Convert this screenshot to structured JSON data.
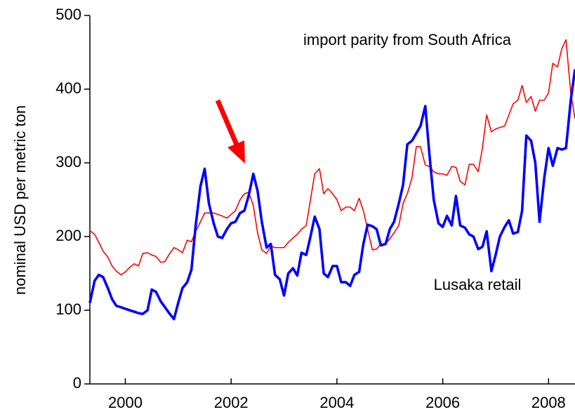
{
  "chart_data": {
    "type": "line",
    "y_label": "nominal USD per metric ton",
    "xlim": [
      1999.33,
      2008.5
    ],
    "xticks": [
      2000,
      2002,
      2004,
      2006,
      2008
    ],
    "ylim": [
      0,
      500
    ],
    "yticks": [
      0,
      100,
      200,
      300,
      400,
      500
    ],
    "x": [
      1999.33,
      1999.42,
      1999.5,
      1999.58,
      1999.67,
      1999.75,
      1999.83,
      1999.92,
      2000.0,
      2000.08,
      2000.17,
      2000.25,
      2000.33,
      2000.42,
      2000.5,
      2000.58,
      2000.67,
      2000.75,
      2000.83,
      2000.92,
      2001.0,
      2001.08,
      2001.17,
      2001.25,
      2001.33,
      2001.42,
      2001.5,
      2001.58,
      2001.67,
      2001.75,
      2001.83,
      2001.92,
      2002.0,
      2002.08,
      2002.17,
      2002.25,
      2002.33,
      2002.42,
      2002.5,
      2002.58,
      2002.67,
      2002.75,
      2002.83,
      2002.92,
      2003.0,
      2003.08,
      2003.17,
      2003.25,
      2003.33,
      2003.42,
      2003.5,
      2003.58,
      2003.67,
      2003.75,
      2003.83,
      2003.92,
      2004.0,
      2004.08,
      2004.17,
      2004.25,
      2004.33,
      2004.42,
      2004.5,
      2004.58,
      2004.67,
      2004.75,
      2004.83,
      2004.92,
      2005.0,
      2005.08,
      2005.17,
      2005.25,
      2005.33,
      2005.42,
      2005.5,
      2005.58,
      2005.67,
      2005.75,
      2005.83,
      2005.92,
      2006.0,
      2006.08,
      2006.17,
      2006.25,
      2006.33,
      2006.42,
      2006.5,
      2006.58,
      2006.67,
      2006.75,
      2006.83,
      2006.92,
      2007.0,
      2007.08,
      2007.17,
      2007.25,
      2007.33,
      2007.42,
      2007.5,
      2007.58,
      2007.67,
      2007.75,
      2007.83,
      2007.92,
      2008.0,
      2008.08,
      2008.17,
      2008.25,
      2008.33,
      2008.42,
      2008.5
    ],
    "series": [
      {
        "name": "import parity from South Africa",
        "color": "#ff0000",
        "width": 1.6,
        "values": [
          208,
          203,
          192,
          180,
          172,
          160,
          153,
          148,
          152,
          158,
          163,
          160,
          177,
          178,
          175,
          173,
          165,
          166,
          176,
          185,
          182,
          178,
          195,
          193,
          207,
          220,
          232,
          232,
          232,
          230,
          228,
          225,
          230,
          235,
          250,
          258,
          260,
          242,
          205,
          182,
          177,
          187,
          185,
          185,
          185,
          192,
          198,
          203,
          210,
          215,
          250,
          285,
          292,
          258,
          265,
          258,
          250,
          235,
          240,
          240,
          235,
          252,
          235,
          210,
          182,
          183,
          190,
          190,
          197,
          205,
          215,
          245,
          258,
          280,
          322,
          322,
          297,
          295,
          288,
          285,
          285,
          283,
          295,
          294,
          275,
          270,
          298,
          298,
          288,
          320,
          365,
          342,
          346,
          348,
          350,
          365,
          380,
          385,
          405,
          382,
          390,
          370,
          385,
          385,
          395,
          435,
          430,
          455,
          467,
          395,
          360
        ]
      },
      {
        "name": "Lusaka retail",
        "color": "#0000ff",
        "width": 3.6,
        "values": [
          110,
          140,
          148,
          145,
          130,
          115,
          106,
          104,
          102,
          100,
          98,
          96,
          95,
          100,
          128,
          125,
          112,
          104,
          96,
          88,
          110,
          130,
          138,
          155,
          215,
          268,
          292,
          245,
          218,
          200,
          198,
          210,
          218,
          220,
          232,
          235,
          255,
          285,
          262,
          220,
          185,
          190,
          148,
          142,
          120,
          150,
          157,
          147,
          178,
          175,
          200,
          227,
          210,
          150,
          145,
          160,
          160,
          138,
          138,
          133,
          148,
          152,
          190,
          216,
          214,
          210,
          188,
          190,
          210,
          220,
          245,
          270,
          325,
          330,
          340,
          350,
          377,
          310,
          250,
          218,
          213,
          228,
          215,
          255,
          215,
          212,
          203,
          200,
          183,
          186,
          207,
          153,
          175,
          200,
          213,
          222,
          204,
          206,
          235,
          337,
          330,
          300,
          220,
          280,
          320,
          296,
          320,
          318,
          320,
          385,
          427
        ]
      }
    ]
  }
}
